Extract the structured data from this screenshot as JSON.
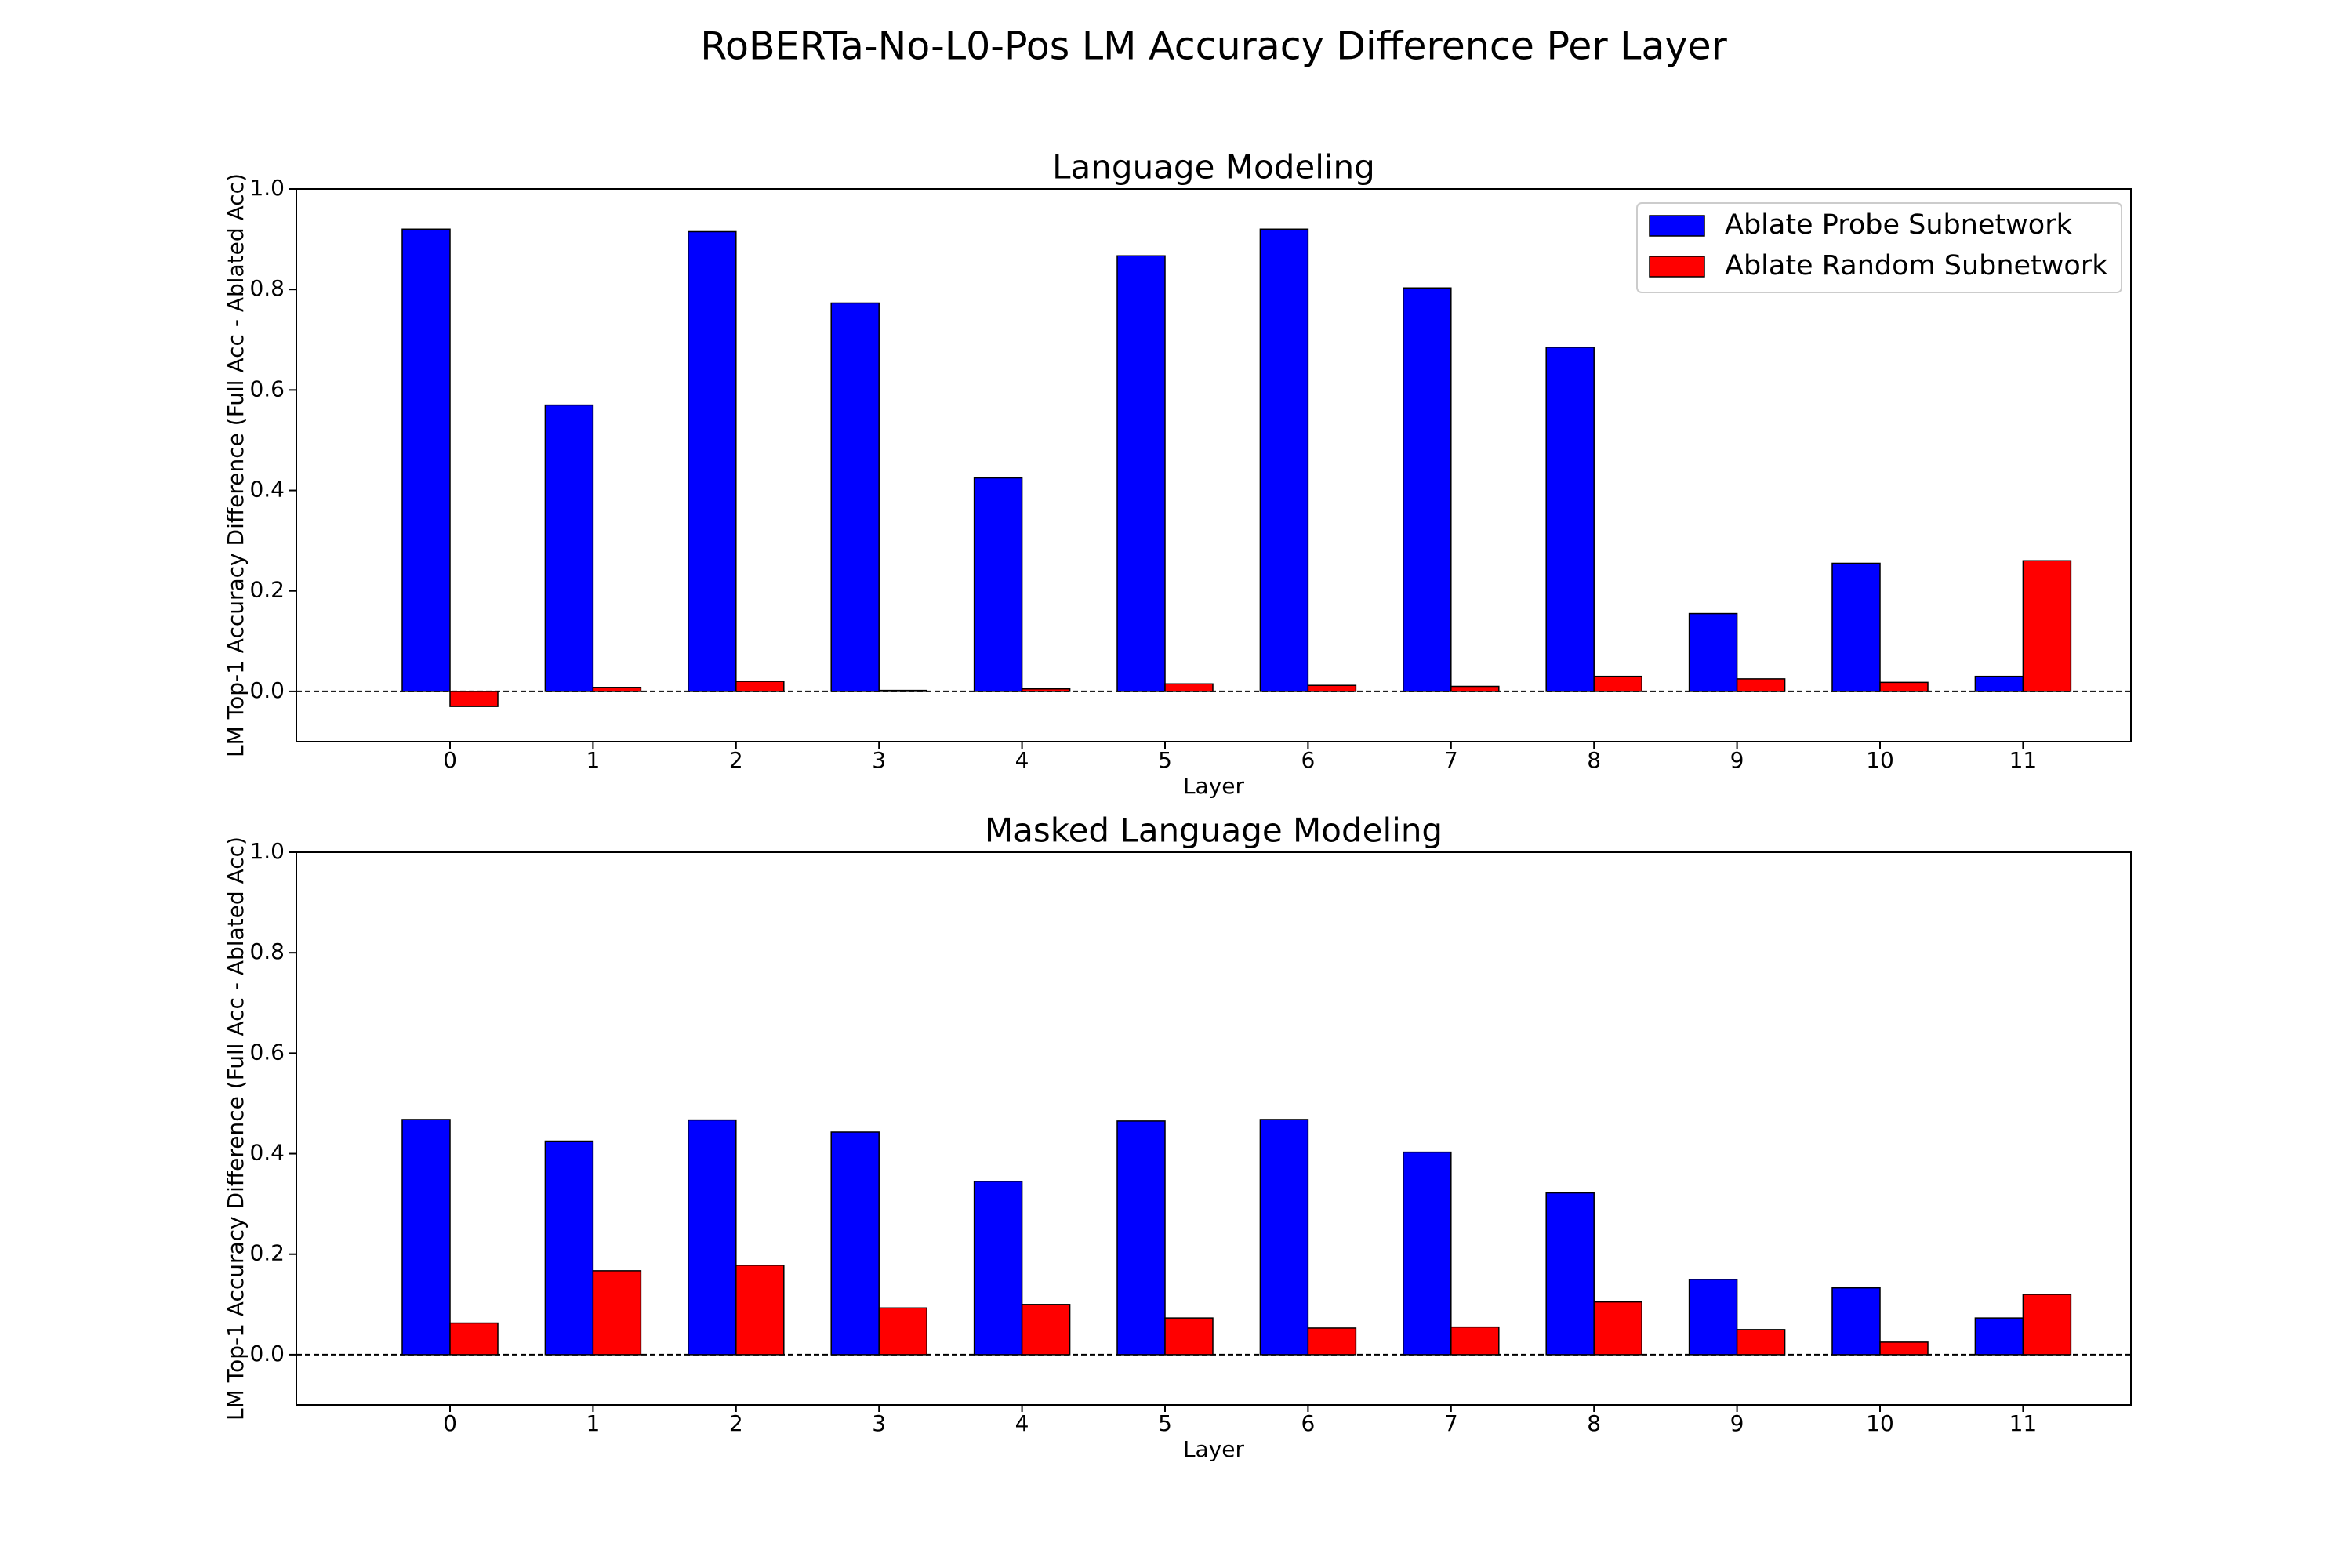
{
  "figure": {
    "title": "RoBERTa-No-L0-Pos LM Accuracy Difference Per Layer"
  },
  "chart_data": [
    {
      "type": "bar",
      "title": "Language Modeling",
      "xlabel": "Layer",
      "ylabel": "LM Top-1 Accuracy Difference (Full Acc - Ablated Acc)",
      "categories": [
        "0",
        "1",
        "2",
        "3",
        "4",
        "5",
        "6",
        "7",
        "8",
        "9",
        "10",
        "11"
      ],
      "ylim": [
        -0.1,
        1.0
      ],
      "yticks": [
        "0.0",
        "0.2",
        "0.4",
        "0.6",
        "0.8",
        "1.0"
      ],
      "zero_line": "dashed",
      "grid": false,
      "legend": "top-right",
      "series": [
        {
          "name": "Ablate Probe Subnetwork",
          "color": "#0000ff",
          "values": [
            0.92,
            0.57,
            0.915,
            0.773,
            0.425,
            0.867,
            0.92,
            0.803,
            0.685,
            0.155,
            0.255,
            0.03
          ]
        },
        {
          "name": "Ablate Random Subnetwork",
          "color": "#ff0000",
          "values": [
            -0.03,
            0.008,
            0.02,
            0.002,
            0.005,
            0.015,
            0.012,
            0.01,
            0.03,
            0.025,
            0.018,
            0.26
          ]
        }
      ]
    },
    {
      "type": "bar",
      "title": "Masked Language Modeling",
      "xlabel": "Layer",
      "ylabel": "LM Top-1 Accuracy Difference (Full Acc - Ablated Acc)",
      "categories": [
        "0",
        "1",
        "2",
        "3",
        "4",
        "5",
        "6",
        "7",
        "8",
        "9",
        "10",
        "11"
      ],
      "ylim": [
        -0.1,
        1.0
      ],
      "yticks": [
        "0.0",
        "0.2",
        "0.4",
        "0.6",
        "0.8",
        "1.0"
      ],
      "zero_line": "dashed",
      "grid": false,
      "series": [
        {
          "name": "Ablate Probe Subnetwork",
          "color": "#0000ff",
          "values": [
            0.468,
            0.425,
            0.467,
            0.443,
            0.345,
            0.465,
            0.468,
            0.403,
            0.322,
            0.15,
            0.133,
            0.073
          ]
        },
        {
          "name": "Ablate Random Subnetwork",
          "color": "#ff0000",
          "values": [
            0.063,
            0.167,
            0.178,
            0.093,
            0.1,
            0.073,
            0.053,
            0.055,
            0.105,
            0.05,
            0.025,
            0.12
          ]
        }
      ]
    }
  ]
}
